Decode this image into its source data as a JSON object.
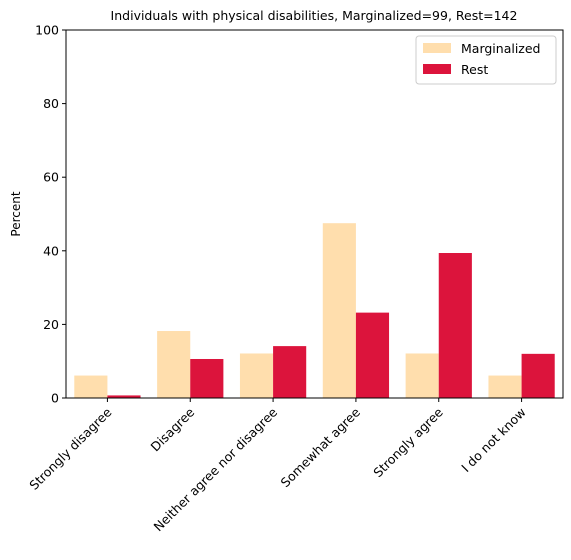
{
  "chart_data": {
    "type": "bar",
    "title": "Individuals with physical disabilities, Marginalized=99, Rest=142",
    "xlabel": "",
    "ylabel": "Percent",
    "ylim": [
      0,
      100
    ],
    "yticks": [
      0,
      20,
      40,
      60,
      80,
      100
    ],
    "grid": false,
    "legend_position": "top-right",
    "categories": [
      "Strongly disagree",
      "Disagree",
      "Neither agree nor disagree",
      "Somewhat agree",
      "Strongly agree",
      "I do not know"
    ],
    "series": [
      {
        "name": "Marginalized",
        "color": "#ffdead",
        "values": [
          6.1,
          18.2,
          12.1,
          47.5,
          12.1,
          6.1
        ]
      },
      {
        "name": "Rest",
        "color": "#dc143c",
        "values": [
          0.7,
          10.6,
          14.1,
          23.2,
          39.4,
          12.0
        ]
      }
    ]
  }
}
